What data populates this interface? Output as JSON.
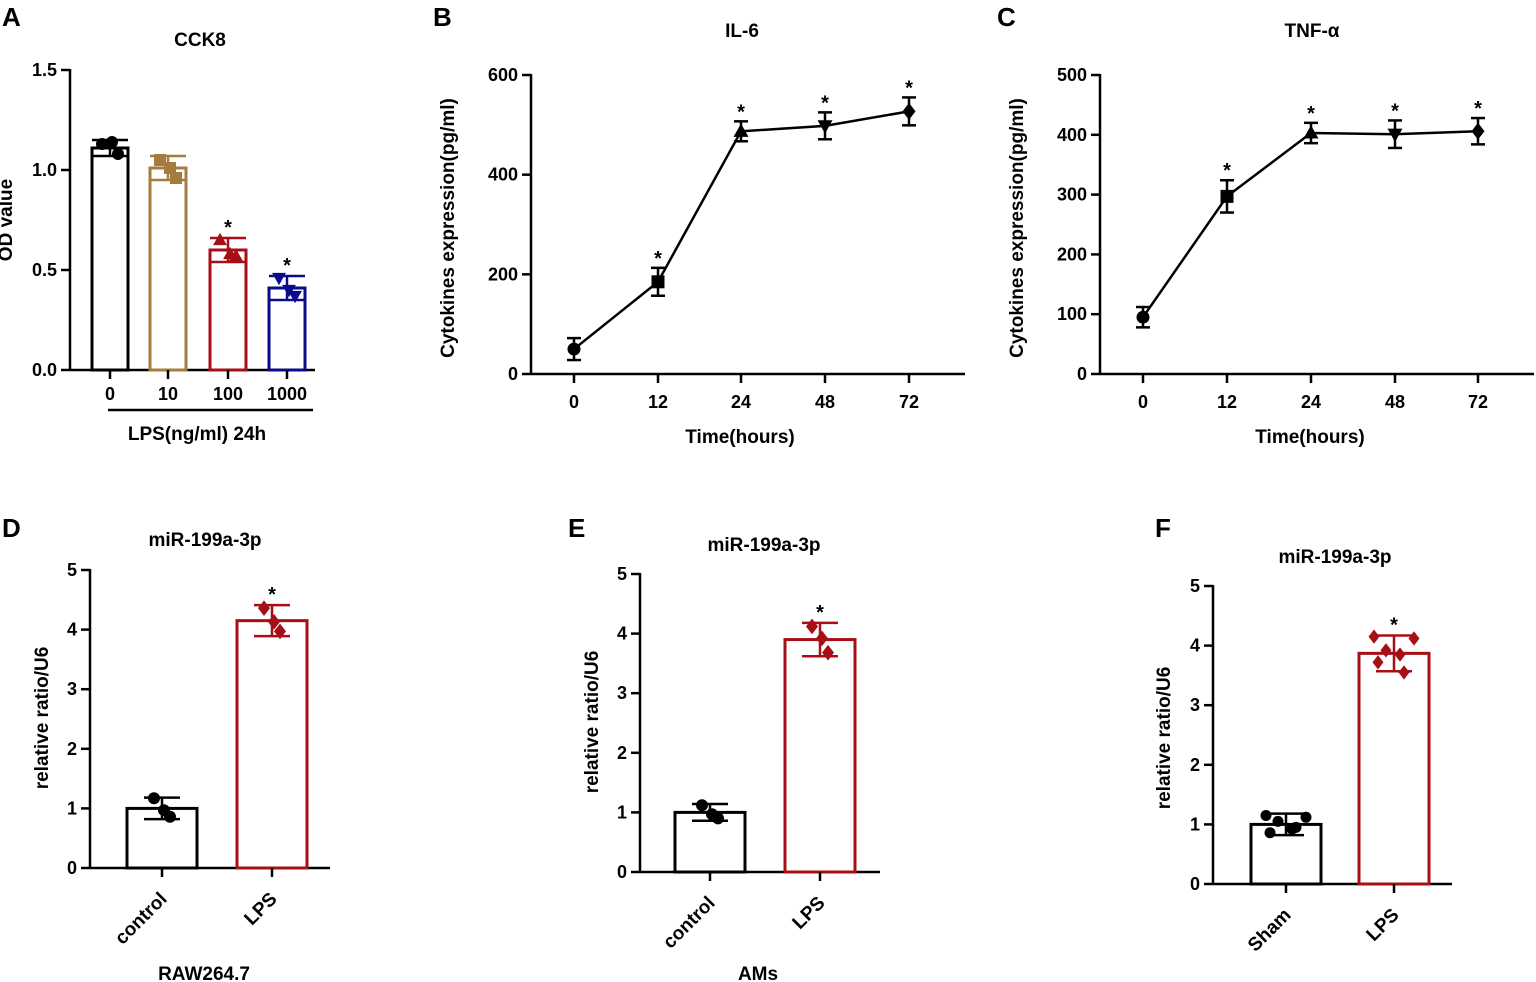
{
  "figure_label": "Multi-panel scientific figure",
  "colors": {
    "black": "#000000",
    "gold": "#A67C3E",
    "red": "#A50F15",
    "blue": "#0A0A8C"
  },
  "chart_data": [
    {
      "id": "A",
      "panel_label": "A",
      "type": "bar",
      "title": "CCK8",
      "ylabel": "OD value",
      "xlabel": "LPS(ng/ml) 24h",
      "ylim": [
        0,
        1.5
      ],
      "yticks": [
        "0.0",
        "0.5",
        "1.0",
        "1.5"
      ],
      "ytick_values": [
        0,
        0.5,
        1.0,
        1.5
      ],
      "categories": [
        "0",
        "10",
        "100",
        "1000"
      ],
      "values": [
        1.11,
        1.01,
        0.6,
        0.41
      ],
      "errors": [
        0.04,
        0.06,
        0.06,
        0.06
      ],
      "points": [
        [
          1.13,
          1.14,
          1.08
        ],
        [
          1.05,
          1.01,
          0.96
        ],
        [
          0.65,
          0.58,
          0.57
        ],
        [
          0.46,
          0.4,
          0.37
        ]
      ],
      "markers": [
        "circle",
        "square",
        "triangle-up",
        "triangle-down"
      ],
      "colors": [
        "#000000",
        "#A67C3E",
        "#A50F15",
        "#0A0A8C"
      ],
      "significance": [
        "",
        "",
        "*",
        "*"
      ]
    },
    {
      "id": "B",
      "panel_label": "B",
      "type": "line",
      "title": "IL-6",
      "ylabel": "Cytokines expression(pg/ml)",
      "xlabel": "Time(hours)",
      "ylim": [
        0,
        600
      ],
      "yticks": [
        "0",
        "200",
        "400",
        "600"
      ],
      "ytick_values": [
        0,
        200,
        400,
        600
      ],
      "categories": [
        "0",
        "12",
        "24",
        "48",
        "72"
      ],
      "values": [
        50,
        185,
        487,
        498,
        527
      ],
      "errors": [
        22,
        28,
        20,
        27,
        28
      ],
      "markers": [
        "circle",
        "square",
        "triangle-up",
        "triangle-down",
        "diamond"
      ],
      "significance": [
        "",
        "*",
        "*",
        "*",
        "*"
      ]
    },
    {
      "id": "C",
      "panel_label": "C",
      "type": "line",
      "title": "TNF-α",
      "ylabel": "Cytokines expression(pg/ml)",
      "xlabel": "Time(hours)",
      "ylim": [
        0,
        500
      ],
      "yticks": [
        "0",
        "100",
        "200",
        "300",
        "400",
        "500"
      ],
      "ytick_values": [
        0,
        100,
        200,
        300,
        400,
        500
      ],
      "categories": [
        "0",
        "12",
        "24",
        "48",
        "72"
      ],
      "values": [
        95,
        297,
        403,
        401,
        406
      ],
      "errors": [
        17,
        27,
        17,
        23,
        22
      ],
      "markers": [
        "circle",
        "square",
        "triangle-up",
        "triangle-down",
        "diamond"
      ],
      "significance": [
        "",
        "*",
        "*",
        "*",
        "*"
      ]
    },
    {
      "id": "D",
      "panel_label": "D",
      "type": "bar",
      "title": "miR-199a-3p",
      "ylabel": "relative ratio/U6",
      "xlabel": "RAW264.7",
      "ylim": [
        0,
        5
      ],
      "yticks": [
        "0",
        "1",
        "2",
        "3",
        "4",
        "5"
      ],
      "ytick_values": [
        0,
        1,
        2,
        3,
        4,
        5
      ],
      "categories": [
        "control",
        "LPS"
      ],
      "values": [
        1.0,
        4.15
      ],
      "errors": [
        0.18,
        0.26
      ],
      "points": [
        [
          1.17,
          0.97,
          0.86
        ],
        [
          4.36,
          4.13,
          3.97
        ]
      ],
      "markers": [
        "circle",
        "diamond"
      ],
      "colors": [
        "#000000",
        "#A50F15"
      ],
      "significance": [
        "",
        "*"
      ]
    },
    {
      "id": "E",
      "panel_label": "E",
      "type": "bar",
      "title": "miR-199a-3p",
      "ylabel": "relative ratio/U6",
      "xlabel": "AMs",
      "ylim": [
        0,
        5
      ],
      "yticks": [
        "0",
        "1",
        "2",
        "3",
        "4",
        "5"
      ],
      "ytick_values": [
        0,
        1,
        2,
        3,
        4,
        5
      ],
      "categories": [
        "control",
        "LPS"
      ],
      "values": [
        1.0,
        3.9
      ],
      "errors": [
        0.14,
        0.28
      ],
      "points": [
        [
          1.12,
          0.97,
          0.9
        ],
        [
          4.12,
          3.92,
          3.68
        ]
      ],
      "markers": [
        "circle",
        "diamond"
      ],
      "colors": [
        "#000000",
        "#A50F15"
      ],
      "significance": [
        "",
        "*"
      ]
    },
    {
      "id": "F",
      "panel_label": "F",
      "type": "bar",
      "title": "miR-199a-3p",
      "ylabel": "relative ratio/U6",
      "xlabel": "",
      "ylim": [
        0,
        5
      ],
      "yticks": [
        "0",
        "1",
        "2",
        "3",
        "4",
        "5"
      ],
      "ytick_values": [
        0,
        1,
        2,
        3,
        4,
        5
      ],
      "categories": [
        "Sham",
        "LPS"
      ],
      "values": [
        1.0,
        3.87
      ],
      "errors": [
        0.18,
        0.3
      ],
      "points": [
        [
          1.15,
          1.12,
          1.05,
          0.92,
          0.86,
          0.95
        ],
        [
          4.15,
          4.12,
          3.92,
          3.85,
          3.72,
          3.55
        ]
      ],
      "markers": [
        "circle",
        "diamond"
      ],
      "colors": [
        "#000000",
        "#A50F15"
      ],
      "significance": [
        "",
        "*"
      ]
    }
  ]
}
